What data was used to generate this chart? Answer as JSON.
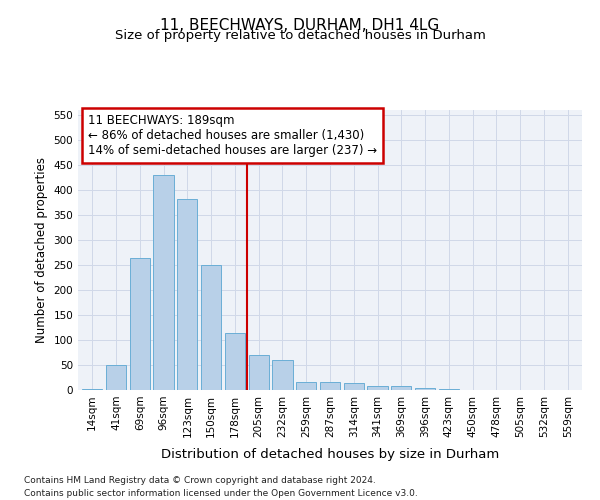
{
  "title": "11, BEECHWAYS, DURHAM, DH1 4LG",
  "subtitle": "Size of property relative to detached houses in Durham",
  "xlabel": "Distribution of detached houses by size in Durham",
  "ylabel": "Number of detached properties",
  "categories": [
    "14sqm",
    "41sqm",
    "69sqm",
    "96sqm",
    "123sqm",
    "150sqm",
    "178sqm",
    "205sqm",
    "232sqm",
    "259sqm",
    "287sqm",
    "314sqm",
    "341sqm",
    "369sqm",
    "396sqm",
    "423sqm",
    "450sqm",
    "478sqm",
    "505sqm",
    "532sqm",
    "559sqm"
  ],
  "values": [
    2,
    50,
    265,
    430,
    382,
    250,
    115,
    70,
    60,
    17,
    17,
    15,
    8,
    8,
    5,
    2,
    1,
    0,
    0,
    0,
    0
  ],
  "bar_color": "#b8d0e8",
  "bar_edge_color": "#6aaed6",
  "bar_linewidth": 0.7,
  "vline_x_index": 6.5,
  "vline_color": "#cc0000",
  "vline_linewidth": 1.5,
  "annotation_line1": "11 BEECHWAYS: 189sqm",
  "annotation_line2": "← 86% of detached houses are smaller (1,430)",
  "annotation_line3": "14% of semi-detached houses are larger (237) →",
  "annotation_box_color": "#cc0000",
  "annotation_fontsize": 8.5,
  "grid_color": "#d0d8e8",
  "background_color": "#eef2f8",
  "ylim": [
    0,
    560
  ],
  "yticks": [
    0,
    50,
    100,
    150,
    200,
    250,
    300,
    350,
    400,
    450,
    500,
    550
  ],
  "footnote": "Contains HM Land Registry data © Crown copyright and database right 2024.\nContains public sector information licensed under the Open Government Licence v3.0.",
  "title_fontsize": 11,
  "subtitle_fontsize": 9.5,
  "xlabel_fontsize": 9.5,
  "ylabel_fontsize": 8.5,
  "tick_fontsize": 7.5,
  "footnote_fontsize": 6.5
}
